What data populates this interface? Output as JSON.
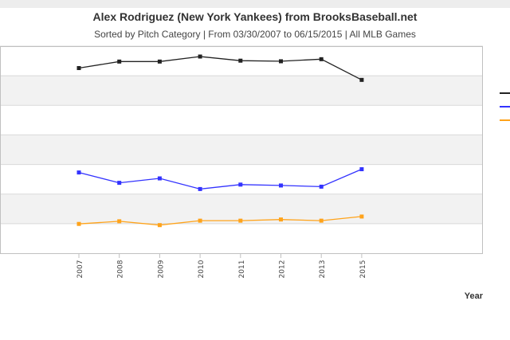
{
  "chart_data": {
    "type": "line",
    "title": "Alex Rodriguez (New York Yankees) from BrooksBaseball.net",
    "subtitle": "Sorted by Pitch Category | From 03/30/2007 to 06/15/2015 | All MLB Games",
    "xlabel": "Year",
    "ylabel": "",
    "categories": [
      "2007",
      "2008",
      "2009",
      "2010",
      "2011",
      "2012",
      "2013",
      "2015"
    ],
    "ylim": [
      0,
      70
    ],
    "grid": true,
    "legend_position": "right",
    "series": [
      {
        "color": "#222222",
        "values": [
          62.6,
          64.8,
          64.8,
          66.5,
          65.1,
          64.9,
          65.6,
          58.6
        ]
      },
      {
        "color": "#3333ff",
        "values": [
          27.3,
          23.8,
          25.3,
          21.7,
          23.2,
          22.9,
          22.5,
          28.4
        ]
      },
      {
        "color": "#ffa31a",
        "values": [
          9.9,
          10.8,
          9.5,
          11.0,
          11.0,
          11.4,
          11.0,
          12.4
        ]
      }
    ]
  }
}
